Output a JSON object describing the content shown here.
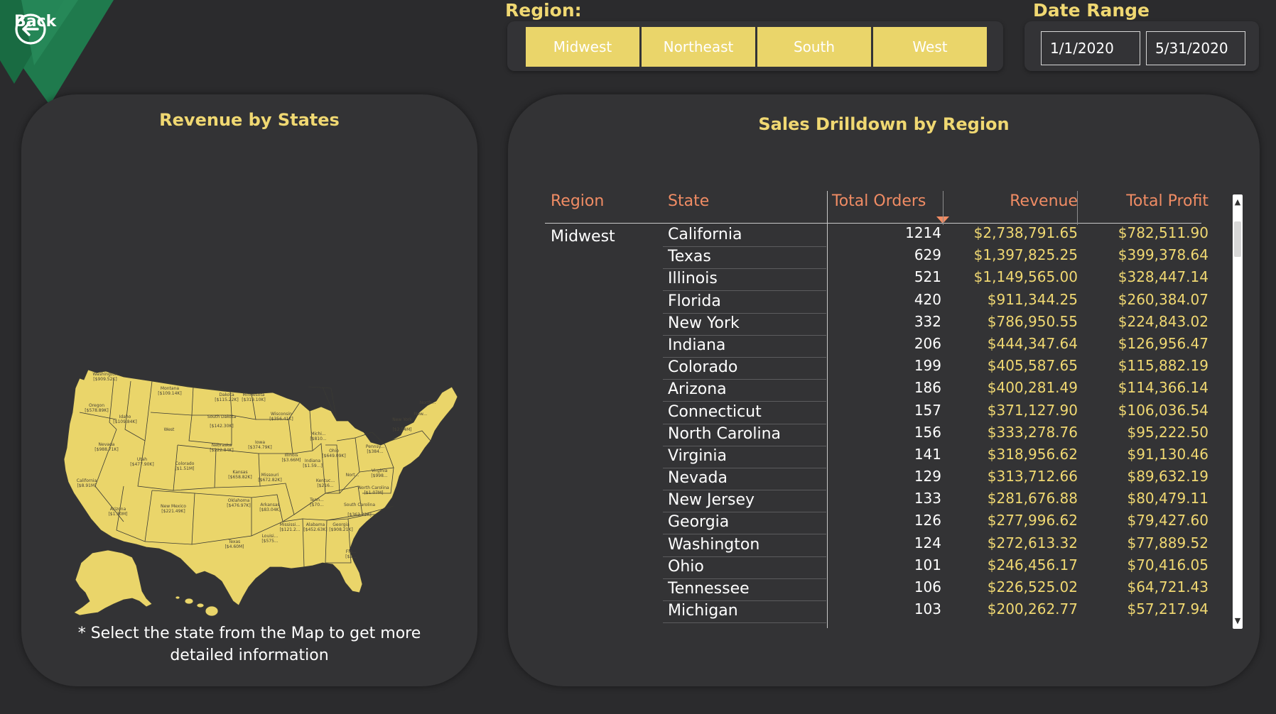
{
  "nav": {
    "back_label": "Back"
  },
  "region_slicer": {
    "title": "Region:",
    "options": [
      "Midwest",
      "Northeast",
      "South",
      "West"
    ]
  },
  "date_range": {
    "title": "Date Range",
    "start": "1/1/2020",
    "end": "5/31/2020"
  },
  "map_panel": {
    "title": "Revenue by States",
    "note_line1": "* Select the state from the Map to get more",
    "note_line2": "detailed information",
    "labels": [
      {
        "name": "Washington",
        "value": "[$909.52K]"
      },
      {
        "name": "Montana",
        "value": "[$109.14K]"
      },
      {
        "name": "Dakota",
        "value": "[$115.22K]"
      },
      {
        "name": "Minnesota",
        "value": "[$319.10K]"
      },
      {
        "name": "Oregon",
        "value": "[$578.89K]"
      },
      {
        "name": "Idaho",
        "value": "[$109.84K]"
      },
      {
        "name": "South Dakota",
        "value": "[$142.30K]"
      },
      {
        "name": "Wisconsin",
        "value": "[$356.41K]"
      },
      {
        "name": "West",
        "value": ""
      },
      {
        "name": "New York",
        "value": "[$2.54M]"
      },
      {
        "name": "Nebraska",
        "value": "[$222.84K]"
      },
      {
        "name": "Iowa",
        "value": "[$374.79K]"
      },
      {
        "name": "Nevada",
        "value": "[$988.71K]"
      },
      {
        "name": "Utah",
        "value": "[$477.90K]"
      },
      {
        "name": "Colorado",
        "value": "[$1.51M]"
      },
      {
        "name": "Illinois",
        "value": "[$3.66M]"
      },
      {
        "name": "Indiana",
        "value": "[$1.59...]"
      },
      {
        "name": "Ohio",
        "value": "[$649.09K]"
      },
      {
        "name": "Kansas",
        "value": "[$658.82K]"
      },
      {
        "name": "Missouri",
        "value": "[$672.82K]"
      },
      {
        "name": "California",
        "value": "[$8.91M]"
      },
      {
        "name": "Kentuc...",
        "value": "[$216..."
      },
      {
        "name": "North Carolina",
        "value": "[$1.07M]"
      },
      {
        "name": "Oklahoma",
        "value": "[$476.97K]"
      },
      {
        "name": "Arkansas",
        "value": "[$83.04K]"
      },
      {
        "name": "Tenn...",
        "value": "[$70..."
      },
      {
        "name": "Arizona",
        "value": "[$1.30M]"
      },
      {
        "name": "New Mexico",
        "value": "[$221.49K]"
      },
      {
        "name": "South Carolina",
        "value": "[$363.22K]"
      },
      {
        "name": "Mississi...",
        "value": "[$121.2..."
      },
      {
        "name": "Alabama",
        "value": "[$452.63K]"
      },
      {
        "name": "Georgia",
        "value": "[$908.21K]"
      },
      {
        "name": "Texas",
        "value": "[$4.60M]"
      },
      {
        "name": "Louisi...",
        "value": "[$575..."
      },
      {
        "name": "Flo...",
        "value": "[$2..."
      },
      {
        "name": "Michi...",
        "value": "[$810..."
      },
      {
        "name": "Pennsy...",
        "value": "[$384..."
      },
      {
        "name": "Virginia",
        "value": "[$998..."
      },
      {
        "name": "North...",
        "value": ""
      },
      {
        "name": "New...",
        "value": ""
      },
      {
        "name": "Nort...",
        "value": ""
      }
    ]
  },
  "drilldown": {
    "title": "Sales Drilldown by Region",
    "columns": [
      "Region",
      "State",
      "Total Orders",
      "Revenue",
      "Total Profit"
    ],
    "region": "Midwest",
    "rows": [
      [
        "California",
        "1214",
        "$2,738,791.65",
        "$782,511.90"
      ],
      [
        "Texas",
        "629",
        "$1,397,825.25",
        "$399,378.64"
      ],
      [
        "Illinois",
        "521",
        "$1,149,565.00",
        "$328,447.14"
      ],
      [
        "Florida",
        "420",
        "$911,344.25",
        "$260,384.07"
      ],
      [
        "New York",
        "332",
        "$786,950.55",
        "$224,843.02"
      ],
      [
        "Indiana",
        "206",
        "$444,347.64",
        "$126,956.47"
      ],
      [
        "Colorado",
        "199",
        "$405,587.65",
        "$115,882.19"
      ],
      [
        "Arizona",
        "186",
        "$400,281.49",
        "$114,366.14"
      ],
      [
        "Connecticut",
        "157",
        "$371,127.90",
        "$106,036.54"
      ],
      [
        "North Carolina",
        "156",
        "$333,278.76",
        "$95,222.50"
      ],
      [
        "Virginia",
        "141",
        "$318,956.62",
        "$91,130.46"
      ],
      [
        "Nevada",
        "129",
        "$313,712.66",
        "$89,632.19"
      ],
      [
        "New Jersey",
        "133",
        "$281,676.88",
        "$80,479.11"
      ],
      [
        "Georgia",
        "126",
        "$277,996.62",
        "$79,427.60"
      ],
      [
        "Washington",
        "124",
        "$272,613.32",
        "$77,889.52"
      ],
      [
        "Ohio",
        "101",
        "$246,456.17",
        "$70,416.05"
      ],
      [
        "Tennessee",
        "106",
        "$226,525.02",
        "$64,721.43"
      ],
      [
        "Michigan",
        "103",
        "$200,262.77",
        "$57,217.94"
      ]
    ]
  },
  "colors": {
    "background": "#2b2b2d",
    "panel": "#333335",
    "accent_yellow": "#ead56a",
    "header_orange": "#f08c64",
    "back_green": "#1e7a4c"
  }
}
